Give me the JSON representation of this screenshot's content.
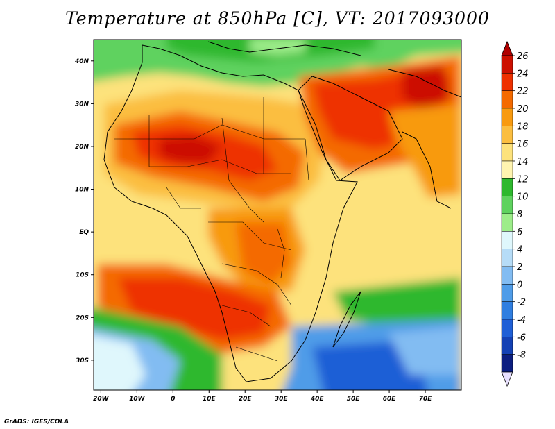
{
  "title": "Temperature at 850hPa [C], VT: 2017093000",
  "footer": "GrADS: IGES/COLA",
  "axes": {
    "x_ticks": [
      {
        "label": "20W",
        "lon": -20
      },
      {
        "label": "10W",
        "lon": -10
      },
      {
        "label": "0",
        "lon": 0
      },
      {
        "label": "10E",
        "lon": 10
      },
      {
        "label": "20E",
        "lon": 20
      },
      {
        "label": "30E",
        "lon": 30
      },
      {
        "label": "40E",
        "lon": 40
      },
      {
        "label": "50E",
        "lon": 50
      },
      {
        "label": "60E",
        "lon": 60
      },
      {
        "label": "70E",
        "lon": 70
      }
    ],
    "y_ticks": [
      {
        "label": "40N",
        "lat": 40
      },
      {
        "label": "30N",
        "lat": 30
      },
      {
        "label": "20N",
        "lat": 20
      },
      {
        "label": "10N",
        "lat": 10
      },
      {
        "label": "EQ",
        "lat": 0
      },
      {
        "label": "10S",
        "lat": -10
      },
      {
        "label": "20S",
        "lat": -20
      },
      {
        "label": "30S",
        "lat": -30
      }
    ],
    "lon_range": [
      -22,
      80
    ],
    "lat_range": [
      -37,
      45
    ]
  },
  "colorbar": {
    "levels": [
      "26",
      "24",
      "22",
      "20",
      "18",
      "16",
      "14",
      "12",
      "10",
      "8",
      "6",
      "4",
      "2",
      "0",
      "-2",
      "-4",
      "-6",
      "-8"
    ],
    "top_arrow_color": "#b00000",
    "bottom_arrow_color": "#e8e0ff",
    "colors": [
      "#cc1000",
      "#ee3000",
      "#f46a00",
      "#f89a10",
      "#fbbe40",
      "#fde27c",
      "#fff4b0",
      "#2eb82e",
      "#5fd25f",
      "#9ded8a",
      "#dff7fc",
      "#b6dcf7",
      "#82bcf2",
      "#4f9ce8",
      "#2f7ee0",
      "#1f5fd6",
      "#1441b4",
      "#0c1e80"
    ]
  },
  "legend_side": "right",
  "colors": {
    "hot_max": "#cc1000",
    "warm": "#fbbe40",
    "mild": "#fff4b0",
    "cool": "#2eb82e",
    "cold": "#4f9ce8",
    "coldest": "#0c1e80"
  }
}
